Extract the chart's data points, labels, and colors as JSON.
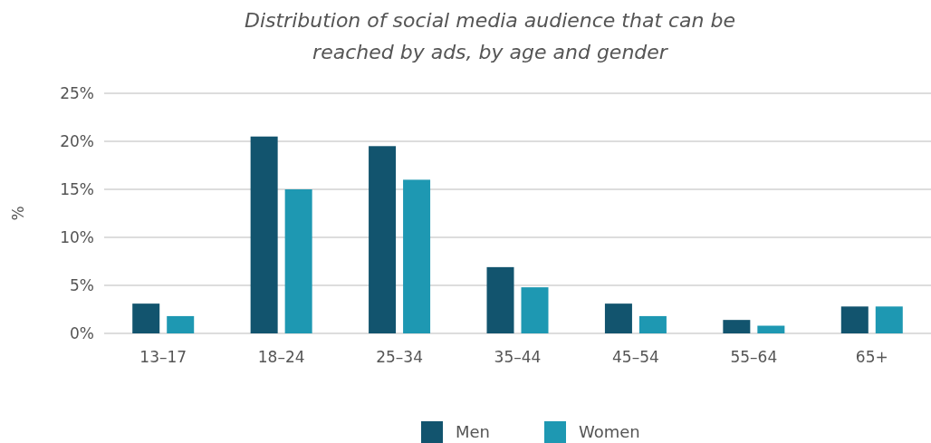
{
  "chart_data": {
    "type": "bar",
    "title": "Distribution of social media audience that can be reached by ads, by age and gender",
    "ylabel": "%",
    "categories": [
      "13–17",
      "18–24",
      "25–34",
      "35–44",
      "45–54",
      "55–64",
      "65+"
    ],
    "series": [
      {
        "name": "Men",
        "color": "#12546e",
        "values": [
          3.1,
          20.5,
          19.5,
          6.9,
          3.1,
          1.4,
          2.8
        ]
      },
      {
        "name": "Women",
        "color": "#1e98b2",
        "values": [
          1.8,
          15,
          16,
          4.8,
          1.8,
          0.8,
          2.8
        ]
      }
    ],
    "ylim": [
      0,
      25
    ],
    "yticks": [
      {
        "value": 0,
        "label": "0%"
      },
      {
        "value": 5,
        "label": "5%"
      },
      {
        "value": 10,
        "label": "10%"
      },
      {
        "value": 15,
        "label": "15%"
      },
      {
        "value": 20,
        "label": "20%"
      },
      {
        "value": 25,
        "label": "25%"
      }
    ],
    "grid": "y",
    "legend": "bottom"
  }
}
